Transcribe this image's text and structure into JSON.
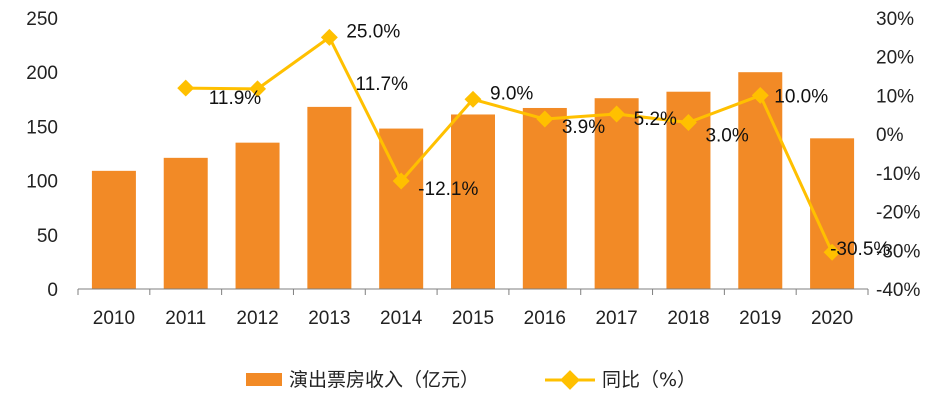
{
  "chart_data": {
    "type": "bar",
    "categories": [
      "2010",
      "2011",
      "2012",
      "2013",
      "2014",
      "2015",
      "2016",
      "2017",
      "2018",
      "2019",
      "2020"
    ],
    "series": [
      {
        "name": "演出票房收入（亿元）",
        "type": "bar",
        "axis": "left",
        "values": [
          109,
          121,
          135,
          168,
          148,
          161,
          167,
          176,
          182,
          200,
          139
        ]
      },
      {
        "name": "同比（%）",
        "type": "line",
        "axis": "right",
        "values": [
          null,
          11.9,
          11.7,
          25.0,
          -12.1,
          9.0,
          3.9,
          5.2,
          3.0,
          10.0,
          -30.5
        ],
        "labels": [
          "",
          "11.9%",
          "11.7%",
          "25.0%",
          "-12.1%",
          "9.0%",
          "3.9%",
          "5.2%",
          "3.0%",
          "10.0%",
          "-30.5%"
        ]
      }
    ],
    "left_axis": {
      "ylim": [
        0,
        250
      ],
      "ticks": [
        "0",
        "50",
        "100",
        "150",
        "200",
        "250"
      ]
    },
    "right_axis": {
      "ylim": [
        -40,
        30
      ],
      "ticks": [
        "-40%",
        "-30%",
        "-20%",
        "-10%",
        "0%",
        "10%",
        "20%",
        "30%"
      ]
    },
    "legend_position": "bottom",
    "grid": false,
    "colors": {
      "bar": "#F28A26",
      "line": "#FFC000",
      "axis": "#7f7f7f"
    }
  }
}
